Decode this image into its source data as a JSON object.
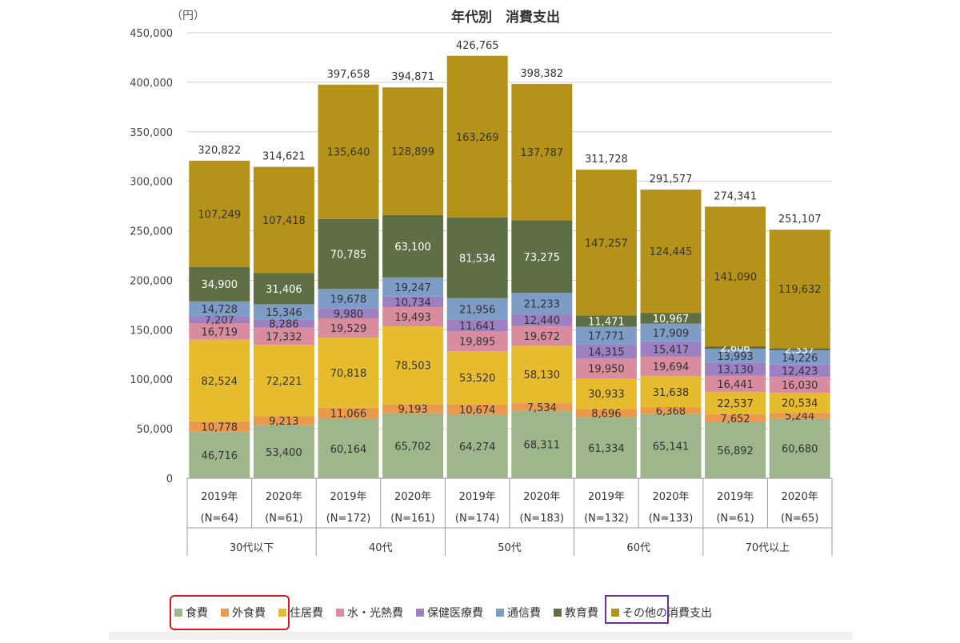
{
  "chart_data": {
    "type": "bar",
    "stacked": true,
    "title": "年代別　消費支出",
    "unit_label": "（円）",
    "ylim": [
      0,
      450000
    ],
    "yticks": [
      "0",
      "50,000",
      "100,000",
      "150,000",
      "200,000",
      "250,000",
      "300,000",
      "350,000",
      "400,000",
      "450,000"
    ],
    "ytick_values": [
      0,
      50000,
      100000,
      150000,
      200000,
      250000,
      300000,
      350000,
      400000,
      450000
    ],
    "grid": true,
    "legend_position": "bottom",
    "categories": [
      {
        "year": "2019年",
        "n": "(N=64)"
      },
      {
        "year": "2020年",
        "n": "(N=61)"
      },
      {
        "year": "2019年",
        "n": "(N=172)"
      },
      {
        "year": "2020年",
        "n": "(N=161)"
      },
      {
        "year": "2019年",
        "n": "(N=174)"
      },
      {
        "year": "2020年",
        "n": "(N=183)"
      },
      {
        "year": "2019年",
        "n": "(N=132)"
      },
      {
        "year": "2020年",
        "n": "(N=133)"
      },
      {
        "year": "2019年",
        "n": "(N=61)"
      },
      {
        "year": "2020年",
        "n": "(N=65)"
      }
    ],
    "groups": [
      "30代以下",
      "40代",
      "50代",
      "60代",
      "70代以上"
    ],
    "totals": [
      320822,
      314621,
      397658,
      394871,
      426765,
      398382,
      311728,
      291577,
      274341,
      251107
    ],
    "series": [
      {
        "name": "食費",
        "color": "#9fb58c",
        "values": [
          46716,
          53400,
          60164,
          65702,
          64274,
          68311,
          61334,
          65141,
          56892,
          60680
        ]
      },
      {
        "name": "外食費",
        "color": "#eb9a4d",
        "values": [
          10778,
          9213,
          11066,
          9193,
          10674,
          7534,
          8696,
          6368,
          7652,
          5244
        ]
      },
      {
        "name": "住居費",
        "color": "#e6bb2e",
        "values": [
          82524,
          72221,
          70818,
          78503,
          53520,
          58130,
          30933,
          31638,
          22537,
          20534
        ]
      },
      {
        "name": "水・光熱費",
        "color": "#d88c9e",
        "values": [
          16719,
          17332,
          19529,
          19493,
          19895,
          19672,
          19950,
          19694,
          16441,
          16030
        ]
      },
      {
        "name": "保健医療費",
        "color": "#9c80c2",
        "values": [
          7207,
          8286,
          9980,
          10734,
          11641,
          12440,
          14315,
          15417,
          13130,
          12423
        ]
      },
      {
        "name": "通信費",
        "color": "#7d9cc6",
        "values": [
          14728,
          15346,
          19678,
          19247,
          21956,
          21233,
          17771,
          17909,
          13993,
          14226
        ]
      },
      {
        "name": "教育費",
        "color": "#5e6e45",
        "values": [
          34900,
          31406,
          70785,
          63100,
          81534,
          73275,
          11471,
          10967,
          2606,
          2337
        ]
      },
      {
        "name": "その他の消費支出",
        "color": "#b5931a",
        "values": [
          107249,
          107418,
          135640,
          128899,
          163269,
          137787,
          147257,
          124445,
          141090,
          119632
        ]
      }
    ]
  }
}
